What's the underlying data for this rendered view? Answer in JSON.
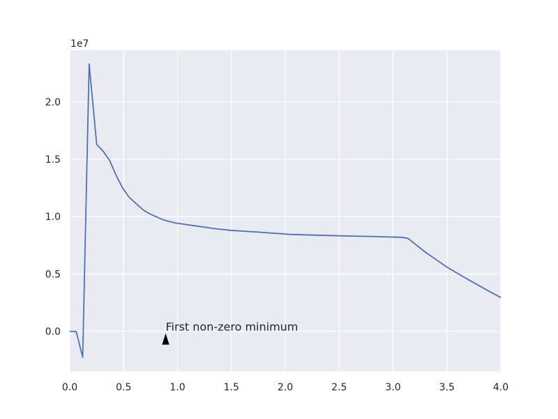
{
  "chart_data": {
    "type": "line",
    "title": "",
    "xlabel": "",
    "ylabel": "",
    "xlim": [
      0.0,
      4.0
    ],
    "ylim": [
      -3500000,
      24500000
    ],
    "x_ticks": [
      0.0,
      0.5,
      1.0,
      1.5,
      2.0,
      2.5,
      3.0,
      3.5,
      4.0
    ],
    "x_tick_labels": [
      "0.0",
      "0.5",
      "1.0",
      "1.5",
      "2.0",
      "2.5",
      "3.0",
      "3.5",
      "4.0"
    ],
    "y_ticks": [
      0,
      5000000,
      10000000,
      15000000,
      20000000
    ],
    "y_tick_labels": [
      "0.0",
      "0.5",
      "1.0",
      "1.5",
      "2.0"
    ],
    "y_offset_label": "1e7",
    "grid": true,
    "colors": {
      "background": "#eaeaf2",
      "grid": "#ffffff",
      "line": "#4c72b0"
    },
    "series": [
      {
        "x": [
          0.0,
          0.06,
          0.12,
          0.18,
          0.25,
          0.31,
          0.37,
          0.43,
          0.49,
          0.55,
          0.62,
          0.68,
          0.74,
          0.8,
          0.86,
          0.92,
          0.98,
          1.05,
          1.2,
          1.35,
          1.5,
          1.75,
          2.05,
          2.3,
          2.55,
          2.8,
          3.08,
          3.14,
          3.3,
          3.5,
          3.7,
          3.9,
          4.0
        ],
        "y": [
          0,
          -20000,
          -2250000,
          23300000,
          16300000,
          15700000,
          14900000,
          13600000,
          12500000,
          11700000,
          11100000,
          10600000,
          10250000,
          10000000,
          9750000,
          9580000,
          9450000,
          9350000,
          9150000,
          8950000,
          8800000,
          8650000,
          8450000,
          8380000,
          8320000,
          8270000,
          8200000,
          8100000,
          6900000,
          5600000,
          4500000,
          3450000,
          2950000
        ]
      }
    ],
    "annotation": {
      "text": "First non-zero minimum",
      "arrow_tip": [
        0.89,
        -700000
      ],
      "text_pos": [
        0.89,
        0
      ]
    }
  }
}
